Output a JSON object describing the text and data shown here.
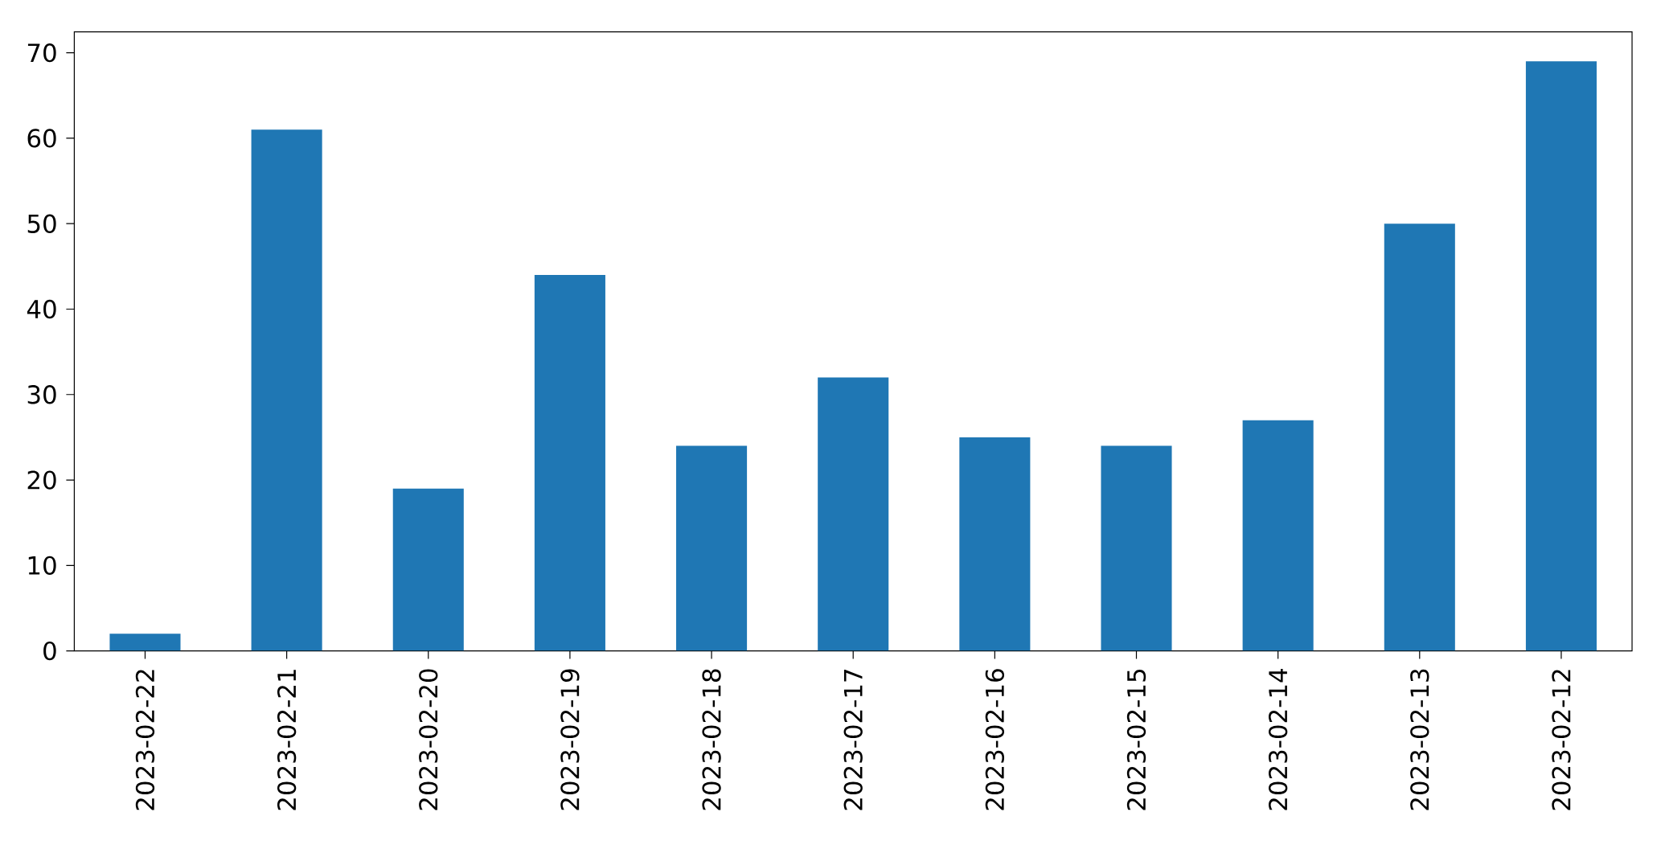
{
  "chart_data": {
    "type": "bar",
    "categories": [
      "2023-02-22",
      "2023-02-21",
      "2023-02-20",
      "2023-02-19",
      "2023-02-18",
      "2023-02-17",
      "2023-02-16",
      "2023-02-15",
      "2023-02-14",
      "2023-02-13",
      "2023-02-12"
    ],
    "values": [
      2,
      61,
      19,
      44,
      24,
      32,
      25,
      24,
      27,
      50,
      69
    ],
    "color": "#1f77b4",
    "ylim": [
      0,
      72.45
    ],
    "yticks": [
      0,
      10,
      20,
      30,
      40,
      50,
      60,
      70
    ]
  }
}
